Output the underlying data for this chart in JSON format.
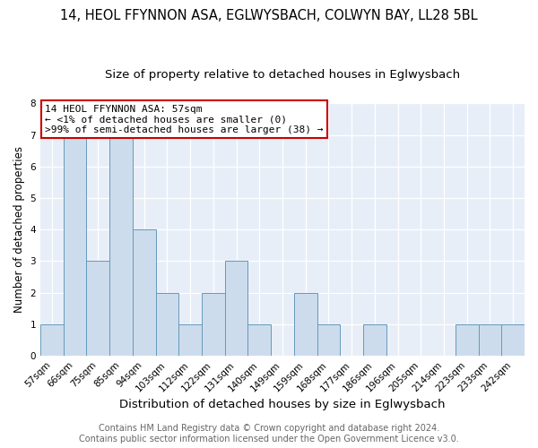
{
  "title": "14, HEOL FFYNNON ASA, EGLWYSBACH, COLWYN BAY, LL28 5BL",
  "subtitle": "Size of property relative to detached houses in Eglwysbach",
  "xlabel": "Distribution of detached houses by size in Eglwysbach",
  "ylabel": "Number of detached properties",
  "bin_labels": [
    "57sqm",
    "66sqm",
    "75sqm",
    "85sqm",
    "94sqm",
    "103sqm",
    "112sqm",
    "122sqm",
    "131sqm",
    "140sqm",
    "149sqm",
    "159sqm",
    "168sqm",
    "177sqm",
    "186sqm",
    "196sqm",
    "205sqm",
    "214sqm",
    "223sqm",
    "233sqm",
    "242sqm"
  ],
  "bar_values": [
    1,
    7,
    3,
    7,
    4,
    2,
    1,
    2,
    3,
    1,
    0,
    2,
    1,
    0,
    1,
    0,
    0,
    0,
    1,
    1,
    1
  ],
  "bar_color": "#ccdcec",
  "bar_edge_color": "#6699bb",
  "ylim": [
    0,
    8
  ],
  "yticks": [
    0,
    1,
    2,
    3,
    4,
    5,
    6,
    7,
    8
  ],
  "annotation_title": "14 HEOL FFYNNON ASA: 57sqm",
  "annotation_line1": "← <1% of detached houses are smaller (0)",
  "annotation_line2": ">99% of semi-detached houses are larger (38) →",
  "annotation_box_color": "#ffffff",
  "annotation_box_edge": "#cc0000",
  "footer1": "Contains HM Land Registry data © Crown copyright and database right 2024.",
  "footer2": "Contains public sector information licensed under the Open Government Licence v3.0.",
  "title_fontsize": 10.5,
  "subtitle_fontsize": 9.5,
  "xlabel_fontsize": 9.5,
  "ylabel_fontsize": 8.5,
  "tick_fontsize": 7.5,
  "annotation_fontsize": 8,
  "footer_fontsize": 7,
  "bg_color": "#e8eef8"
}
